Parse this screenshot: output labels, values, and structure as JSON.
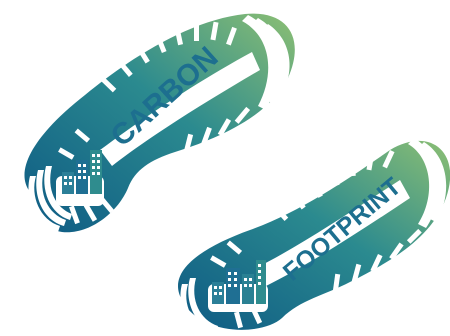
{
  "illustration": {
    "word_top": "CARBON",
    "word_bottom": "FOOTPRINT",
    "colors": {
      "dark_blue": "#0e5a84",
      "teal": "#2b8a8f",
      "green": "#8cbf73",
      "white": "#ffffff"
    },
    "icons": [
      "shoe-print-icon",
      "shoe-print-icon",
      "city-buildings-icon",
      "city-buildings-icon"
    ]
  }
}
